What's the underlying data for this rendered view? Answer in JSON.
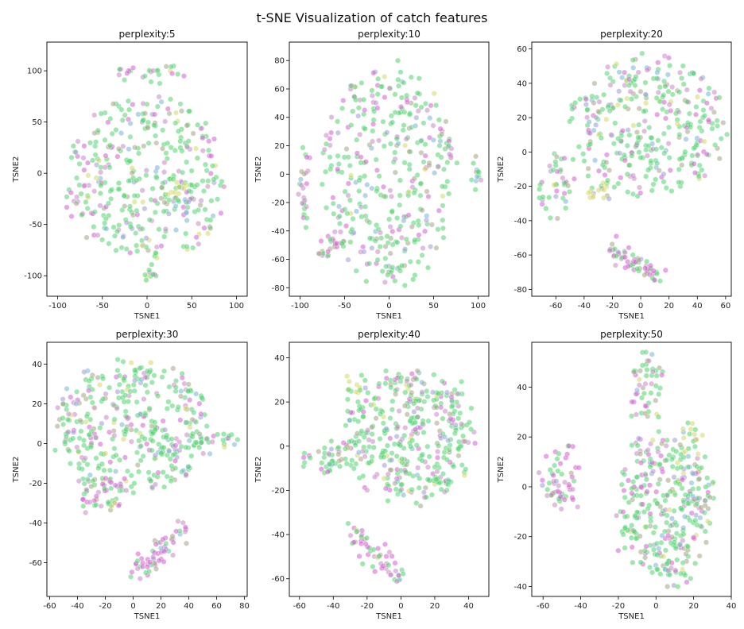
{
  "figure": {
    "title": "t-SNE Visualization of catch features"
  },
  "point_colors": [
    "#4fd36a",
    "#57d27a",
    "#d35fd0",
    "#c989c4",
    "#a6a383",
    "#d6d86a",
    "#79b2d6",
    "#9e9bd6"
  ],
  "chart_data": [
    {
      "type": "scatter",
      "title": "perplexity:5",
      "xlabel": "TSNE1",
      "ylabel": "TSNE2",
      "xlim": [
        -112,
        112
      ],
      "ylim": [
        -120,
        128
      ],
      "xticks": [
        -100,
        -50,
        0,
        50,
        100
      ],
      "yticks": [
        -100,
        -50,
        0,
        50,
        100
      ],
      "blobs": [
        {
          "cx": 0,
          "cy": -5,
          "rx": 92,
          "ry": 80,
          "n": 360,
          "shape": "ellipse",
          "mix": "green"
        },
        {
          "cx": 5,
          "cy": 97,
          "rx": 40,
          "ry": 6,
          "n": 25,
          "shape": "ellipse",
          "mix": "mixed"
        },
        {
          "cx": 0,
          "cy": -100,
          "rx": 8,
          "ry": 8,
          "n": 10,
          "shape": "ellipse",
          "mix": "green"
        },
        {
          "cx": 30,
          "cy": -15,
          "rx": 15,
          "ry": 10,
          "n": 18,
          "shape": "ellipse",
          "mix": "yellow"
        }
      ]
    },
    {
      "type": "scatter",
      "title": "perplexity:10",
      "xlabel": "TSNE1",
      "ylabel": "TSNE2",
      "xlim": [
        -112,
        112
      ],
      "ylim": [
        -86,
        93
      ],
      "xticks": [
        -100,
        -50,
        0,
        50,
        100
      ],
      "yticks": [
        -80,
        -60,
        -40,
        -20,
        0,
        20,
        40,
        60,
        80
      ],
      "blobs": [
        {
          "cx": 0,
          "cy": 0,
          "rx": 75,
          "ry": 78,
          "n": 360,
          "shape": "ellipse",
          "mix": "green"
        },
        {
          "cx": -95,
          "cy": -10,
          "rx": 6,
          "ry": 35,
          "n": 25,
          "shape": "ellipse",
          "mix": "pink"
        },
        {
          "cx": 95,
          "cy": 0,
          "rx": 6,
          "ry": 12,
          "n": 12,
          "shape": "ellipse",
          "mix": "green"
        },
        {
          "cx": -70,
          "cy": -50,
          "rx": 12,
          "ry": 10,
          "n": 20,
          "shape": "ellipse",
          "mix": "pink"
        }
      ]
    },
    {
      "type": "scatter",
      "title": "perplexity:20",
      "xlabel": "TSNE1",
      "ylabel": "TSNE2",
      "xlim": [
        -77,
        64
      ],
      "ylim": [
        -84,
        64
      ],
      "xticks": [
        -60,
        -40,
        -20,
        0,
        20,
        40,
        60
      ],
      "yticks": [
        -80,
        -60,
        -40,
        -20,
        0,
        20,
        40,
        60
      ],
      "blobs": [
        {
          "cx": 5,
          "cy": 15,
          "rx": 55,
          "ry": 40,
          "n": 330,
          "shape": "ellipse",
          "mix": "green"
        },
        {
          "cx": -60,
          "cy": -20,
          "rx": 12,
          "ry": 18,
          "n": 40,
          "shape": "ellipse",
          "mix": "green"
        },
        {
          "cx": -20,
          "cy": -58,
          "x2": 15,
          "y2": -72,
          "rx": 4,
          "ry": 6,
          "n": 60,
          "shape": "band",
          "mix": "pink"
        },
        {
          "cx": -30,
          "cy": -22,
          "rx": 10,
          "ry": 5,
          "n": 15,
          "shape": "ellipse",
          "mix": "yellow"
        }
      ]
    },
    {
      "type": "scatter",
      "title": "perplexity:30",
      "xlabel": "TSNE1",
      "ylabel": "TSNE2",
      "xlim": [
        -62,
        82
      ],
      "ylim": [
        -77,
        51
      ],
      "xticks": [
        -60,
        -40,
        -20,
        0,
        20,
        40,
        60,
        80
      ],
      "yticks": [
        -60,
        -40,
        -20,
        0,
        20,
        40
      ],
      "blobs": [
        {
          "cx": 0,
          "cy": 8,
          "rx": 55,
          "ry": 35,
          "n": 380,
          "shape": "ellipse",
          "mix": "green"
        },
        {
          "cx": 55,
          "cy": 0,
          "rx": 20,
          "ry": 6,
          "n": 25,
          "shape": "ellipse",
          "mix": "green"
        },
        {
          "cx": -25,
          "cy": -25,
          "rx": 18,
          "ry": 10,
          "n": 40,
          "shape": "ellipse",
          "mix": "pink"
        },
        {
          "cx": 0,
          "cy": -68,
          "x2": 38,
          "y2": -42,
          "rx": 4,
          "ry": 6,
          "n": 60,
          "shape": "band",
          "mix": "pink"
        }
      ]
    },
    {
      "type": "scatter",
      "title": "perplexity:40",
      "xlabel": "TSNE1",
      "ylabel": "TSNE2",
      "xlim": [
        -66,
        52
      ],
      "ylim": [
        -68,
        47
      ],
      "xticks": [
        -60,
        -40,
        -20,
        0,
        20,
        40
      ],
      "yticks": [
        -60,
        -40,
        -20,
        0,
        20,
        40
      ],
      "blobs": [
        {
          "cx": 5,
          "cy": 5,
          "rx": 40,
          "ry": 30,
          "n": 380,
          "shape": "ellipse",
          "mix": "green"
        },
        {
          "cx": -45,
          "cy": -5,
          "rx": 15,
          "ry": 8,
          "n": 40,
          "shape": "ellipse",
          "mix": "green"
        },
        {
          "cx": -30,
          "cy": -38,
          "x2": 0,
          "y2": -60,
          "rx": 3,
          "ry": 5,
          "n": 55,
          "shape": "band",
          "mix": "pink"
        },
        {
          "cx": -25,
          "cy": 25,
          "rx": 8,
          "ry": 4,
          "n": 12,
          "shape": "ellipse",
          "mix": "yellow"
        }
      ]
    },
    {
      "type": "scatter",
      "title": "perplexity:50",
      "xlabel": "TSNE1",
      "ylabel": "TSNE2",
      "xlim": [
        -66,
        40
      ],
      "ylim": [
        -44,
        58
      ],
      "xticks": [
        -60,
        -40,
        -20,
        0,
        20,
        40
      ],
      "yticks": [
        -40,
        -20,
        0,
        20,
        40
      ],
      "blobs": [
        {
          "cx": 5,
          "cy": -8,
          "rx": 25,
          "ry": 30,
          "n": 330,
          "shape": "ellipse",
          "mix": "green"
        },
        {
          "cx": -5,
          "cy": 40,
          "rx": 8,
          "ry": 14,
          "n": 50,
          "shape": "ellipse",
          "mix": "green"
        },
        {
          "cx": -50,
          "cy": 5,
          "rx": 10,
          "ry": 12,
          "n": 55,
          "shape": "ellipse",
          "mix": "pink"
        },
        {
          "cx": 20,
          "cy": 20,
          "rx": 6,
          "ry": 8,
          "n": 15,
          "shape": "ellipse",
          "mix": "yellow"
        }
      ]
    }
  ]
}
